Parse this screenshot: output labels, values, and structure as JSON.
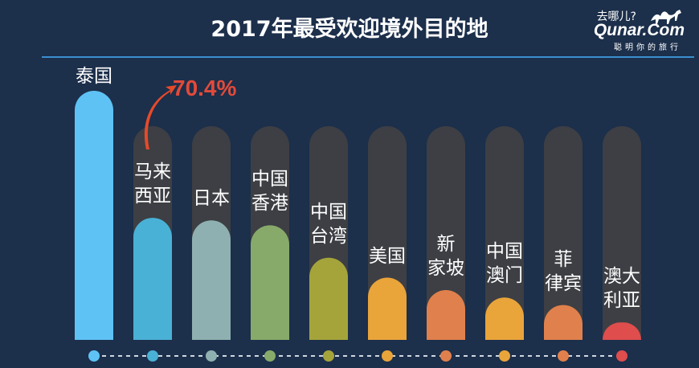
{
  "header": {
    "title": "2017年最受欢迎境外目的地"
  },
  "logo": {
    "cn": "去哪儿?",
    "en": "Qunar.Com",
    "slogan": "聪明你的旅行"
  },
  "chart_data": {
    "type": "bar",
    "title": "2017年最受欢迎境外目的地",
    "categories": [
      "泰国",
      "马来\n西亚",
      "日本",
      "中国\n香港",
      "中国\n台湾",
      "美国",
      "新\n家坡",
      "中国\n澳门",
      "菲\n律宾",
      "澳大\n利亚"
    ],
    "values": [
      100,
      49,
      48,
      46,
      33,
      25,
      20,
      17,
      14,
      7
    ],
    "ylim": [
      0,
      100
    ],
    "annotation": "70.4%",
    "grid": false,
    "colors": [
      "#5ec2f5",
      "#4ab1d6",
      "#8fb0b0",
      "#87aa6a",
      "#a5a43a",
      "#e9a43a",
      "#e0804c",
      "#e9a43a",
      "#e0804c",
      "#df4d4d"
    ]
  }
}
